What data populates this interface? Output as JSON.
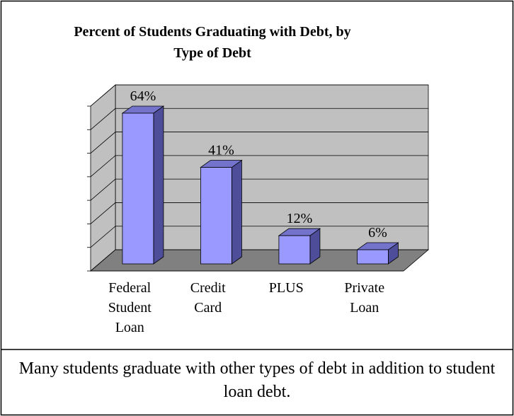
{
  "chart_data": {
    "type": "bar3d",
    "title": "Percent of Students Graduating with Debt, by Type of Debt",
    "categories": [
      "Federal Student Loan",
      "Credit Card",
      "PLUS",
      "Private Loan"
    ],
    "values": [
      64,
      41,
      12,
      6
    ],
    "value_labels": [
      "64%",
      "41%",
      "12%",
      "6%"
    ],
    "color": "#9999ff",
    "ylim": [
      0,
      70
    ],
    "yticks": [
      0,
      10,
      20,
      30,
      40,
      50,
      60,
      70
    ],
    "grid": true,
    "caption": "Many students graduate with other types of debt in addition to student loan debt."
  }
}
